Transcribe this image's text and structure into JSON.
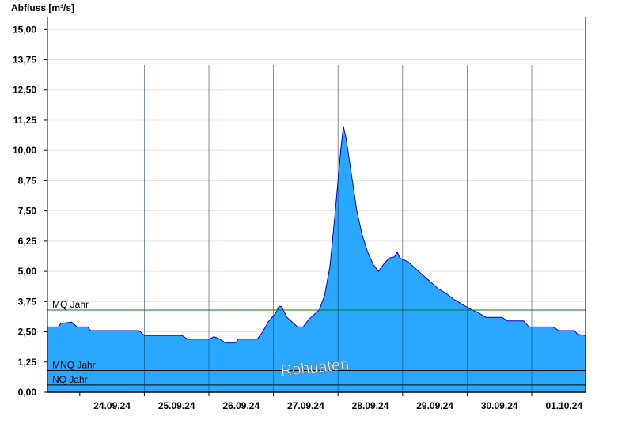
{
  "chart_data": {
    "type": "area",
    "ylabel": "Abfluss [m³/s]",
    "ylim": [
      0,
      15.5
    ],
    "y_ticks": [
      "0,00",
      "1,25",
      "2,50",
      "3,75",
      "5,00",
      "6,25",
      "7,50",
      "8,75",
      "10,00",
      "11,25",
      "12,50",
      "13,75",
      "15,00"
    ],
    "y_tick_values": [
      0,
      1.25,
      2.5,
      3.75,
      5,
      6.25,
      7.5,
      8.75,
      10,
      11.25,
      12.5,
      13.75,
      15
    ],
    "x_ticks": [
      "24.09.24",
      "25.09.24",
      "26.09.24",
      "27.09.24",
      "28.09.24",
      "29.09.24",
      "30.09.24",
      "01.10.24"
    ],
    "xlim": [
      "2024-09-23T12:00",
      "2024-10-01T20:00"
    ],
    "grid": true,
    "series": [
      {
        "points": [
          [
            "2024-09-23T12:00",
            2.7
          ],
          [
            "2024-09-23T16:00",
            2.7
          ],
          [
            "2024-09-23T17:00",
            2.85
          ],
          [
            "2024-09-23T21:00",
            2.9
          ],
          [
            "2024-09-23T23:00",
            2.7
          ],
          [
            "2024-09-24T03:00",
            2.7
          ],
          [
            "2024-09-24T04:00",
            2.55
          ],
          [
            "2024-09-24T12:00",
            2.55
          ],
          [
            "2024-09-24T22:00",
            2.55
          ],
          [
            "2024-09-25T00:00",
            2.35
          ],
          [
            "2024-09-25T14:00",
            2.35
          ],
          [
            "2024-09-25T16:00",
            2.2
          ],
          [
            "2024-09-26T00:00",
            2.2
          ],
          [
            "2024-09-26T02:00",
            2.3
          ],
          [
            "2024-09-26T04:00",
            2.2
          ],
          [
            "2024-09-26T06:00",
            2.05
          ],
          [
            "2024-09-26T10:00",
            2.05
          ],
          [
            "2024-09-26T11:00",
            2.2
          ],
          [
            "2024-09-26T18:00",
            2.2
          ],
          [
            "2024-09-26T20:00",
            2.5
          ],
          [
            "2024-09-26T22:00",
            2.9
          ],
          [
            "2024-09-27T01:00",
            3.3
          ],
          [
            "2024-09-27T02:00",
            3.55
          ],
          [
            "2024-09-27T03:00",
            3.55
          ],
          [
            "2024-09-27T05:00",
            3.1
          ],
          [
            "2024-09-27T07:00",
            2.9
          ],
          [
            "2024-09-27T09:00",
            2.7
          ],
          [
            "2024-09-27T11:00",
            2.7
          ],
          [
            "2024-09-27T13:00",
            3.0
          ],
          [
            "2024-09-27T15:00",
            3.2
          ],
          [
            "2024-09-27T17:00",
            3.4
          ],
          [
            "2024-09-27T19:00",
            4.0
          ],
          [
            "2024-09-27T21:00",
            5.2
          ],
          [
            "2024-09-27T23:00",
            7.5
          ],
          [
            "2024-09-28T01:00",
            10.0
          ],
          [
            "2024-09-28T02:00",
            11.0
          ],
          [
            "2024-09-28T03:00",
            10.5
          ],
          [
            "2024-09-28T05:00",
            9.0
          ],
          [
            "2024-09-28T07:00",
            7.5
          ],
          [
            "2024-09-28T09:00",
            6.5
          ],
          [
            "2024-09-28T11:00",
            5.8
          ],
          [
            "2024-09-28T13:00",
            5.3
          ],
          [
            "2024-09-28T15:00",
            5.0
          ],
          [
            "2024-09-28T17:00",
            5.3
          ],
          [
            "2024-09-28T19:00",
            5.55
          ],
          [
            "2024-09-28T21:00",
            5.6
          ],
          [
            "2024-09-28T22:00",
            5.8
          ],
          [
            "2024-09-28T23:00",
            5.55
          ],
          [
            "2024-09-29T02:00",
            5.4
          ],
          [
            "2024-09-29T04:00",
            5.2
          ],
          [
            "2024-09-29T07:00",
            4.9
          ],
          [
            "2024-09-29T10:00",
            4.6
          ],
          [
            "2024-09-29T13:00",
            4.3
          ],
          [
            "2024-09-29T16:00",
            4.1
          ],
          [
            "2024-09-29T19:00",
            3.85
          ],
          [
            "2024-09-29T22:00",
            3.65
          ],
          [
            "2024-09-30T01:00",
            3.45
          ],
          [
            "2024-09-30T04:00",
            3.3
          ],
          [
            "2024-09-30T07:00",
            3.1
          ],
          [
            "2024-09-30T13:00",
            3.1
          ],
          [
            "2024-09-30T15:00",
            2.95
          ],
          [
            "2024-09-30T21:00",
            2.95
          ],
          [
            "2024-09-30T23:00",
            2.7
          ],
          [
            "2024-10-01T08:00",
            2.7
          ],
          [
            "2024-10-01T10:00",
            2.55
          ],
          [
            "2024-10-01T16:00",
            2.55
          ],
          [
            "2024-10-01T17:00",
            2.4
          ],
          [
            "2024-10-01T20:00",
            2.35
          ]
        ]
      }
    ],
    "reference_lines": [
      {
        "label": "MQ Jahr",
        "value": 3.4,
        "color": "#008000"
      },
      {
        "label": "MNQ Jahr",
        "value": 0.9,
        "color": "#000000"
      },
      {
        "label": "NQ Jahr",
        "value": 0.3,
        "color": "#000000"
      }
    ],
    "watermark": "Rohdaten",
    "colors": {
      "fill": "#2aa8ff",
      "line": "#0000cc",
      "grid": "#e3e3e3"
    }
  }
}
